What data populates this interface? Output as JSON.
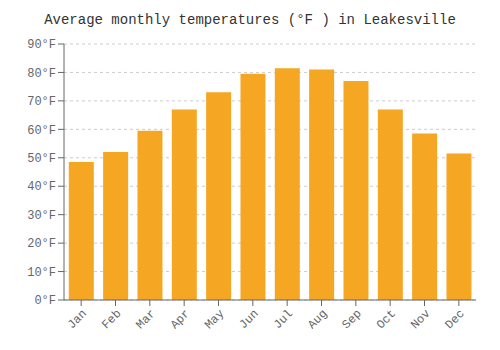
{
  "chart_data": {
    "type": "bar",
    "title": "Average monthly temperatures (°F ) in Leakesville",
    "categories": [
      "Jan",
      "Feb",
      "Mar",
      "Apr",
      "May",
      "Jun",
      "Jul",
      "Aug",
      "Sep",
      "Oct",
      "Nov",
      "Dec"
    ],
    "values": [
      48.5,
      52,
      59.5,
      67,
      73,
      79.5,
      81.5,
      81,
      77,
      67,
      58.5,
      51.5
    ],
    "color": "#F5A623",
    "ylim": [
      0,
      90
    ],
    "yticks": [
      {
        "value": 0,
        "label": "0°F"
      },
      {
        "value": 10,
        "label": "10°F"
      },
      {
        "value": 20,
        "label": "20°F"
      },
      {
        "value": 30,
        "label": "30°F"
      },
      {
        "value": 40,
        "label": "40°F"
      },
      {
        "value": 50,
        "label": "50°F"
      },
      {
        "value": 60,
        "label": "60°F"
      },
      {
        "value": 70,
        "label": "70°F"
      },
      {
        "value": 80,
        "label": "80°F"
      },
      {
        "value": 90,
        "label": "90°F"
      }
    ],
    "grid": true
  }
}
